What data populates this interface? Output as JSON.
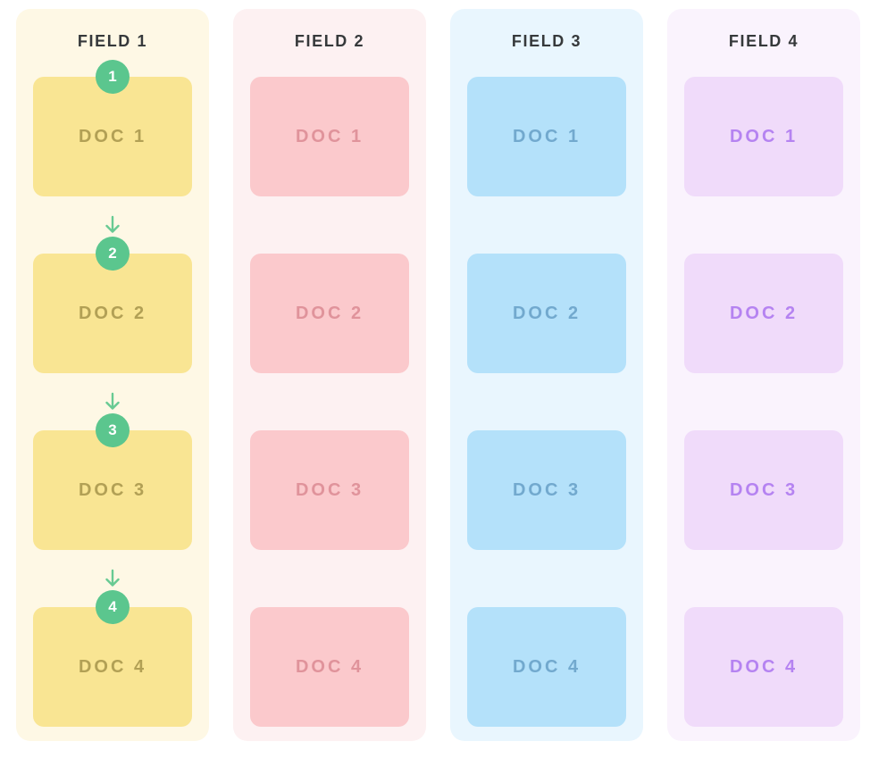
{
  "board": {
    "title_color": "#36393B",
    "step": {
      "badge_color": "#5BC68E",
      "badge_text_color": "#FFFFFF",
      "arrow_color": "#68CA93",
      "arrow_icon": "down-arrow"
    },
    "columns": [
      {
        "title": "FIELD 1",
        "panel_color": "#FEF8E5",
        "card_color": "#F9E593",
        "doc_text_color": "#B2A055",
        "show_steps": true,
        "docs": [
          {
            "label": "DOC 1",
            "badge": "1"
          },
          {
            "label": "DOC 2",
            "badge": "2"
          },
          {
            "label": "DOC 3",
            "badge": "3"
          },
          {
            "label": "DOC 4",
            "badge": "4"
          }
        ]
      },
      {
        "title": "FIELD 2",
        "panel_color": "#FDF1F2",
        "card_color": "#FBC9CC",
        "doc_text_color": "#E0939B",
        "show_steps": false,
        "docs": [
          {
            "label": "DOC 1"
          },
          {
            "label": "DOC 2"
          },
          {
            "label": "DOC 3"
          },
          {
            "label": "DOC 4"
          }
        ]
      },
      {
        "title": "FIELD 3",
        "panel_color": "#E9F6FE",
        "card_color": "#B4E1FA",
        "doc_text_color": "#72A9CE",
        "show_steps": false,
        "docs": [
          {
            "label": "DOC 1"
          },
          {
            "label": "DOC 2"
          },
          {
            "label": "DOC 3"
          },
          {
            "label": "DOC 4"
          }
        ]
      },
      {
        "title": "FIELD 4",
        "panel_color": "#FAF3FD",
        "card_color": "#F0DBFA",
        "doc_text_color": "#B583F1",
        "show_steps": false,
        "docs": [
          {
            "label": "DOC 1"
          },
          {
            "label": "DOC 2"
          },
          {
            "label": "DOC 3"
          },
          {
            "label": "DOC 4"
          }
        ]
      }
    ]
  }
}
